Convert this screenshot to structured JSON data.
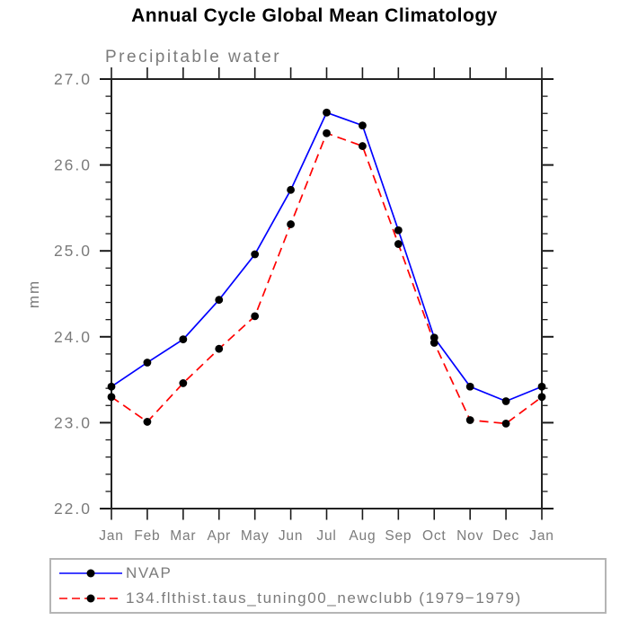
{
  "header": {
    "title": "Annual Cycle Global Mean Climatology",
    "subtitle": "Precipitable water"
  },
  "chart_data": {
    "type": "line",
    "title": "Annual Cycle Global Mean Climatology",
    "subtitle": "Precipitable water",
    "xlabel": "",
    "ylabel": "mm",
    "categories": [
      "Jan",
      "Feb",
      "Mar",
      "Apr",
      "May",
      "Jun",
      "Jul",
      "Aug",
      "Sep",
      "Oct",
      "Nov",
      "Dec",
      "Jan"
    ],
    "ylim": [
      22.0,
      27.0
    ],
    "ytick_labels": [
      "22.0",
      "23.0",
      "24.0",
      "25.0",
      "26.0",
      "27.0"
    ],
    "ytick_major_step": 1.0,
    "ytick_minor_step": 0.2,
    "grid": false,
    "tick_direction": "out",
    "legend_position": "bottom-left",
    "series": [
      {
        "name": "NVAP",
        "color": "#0000ff",
        "line_style": "solid",
        "marker": "circle",
        "marker_color": "#000000",
        "values": [
          23.42,
          23.7,
          23.97,
          24.43,
          24.96,
          25.71,
          26.61,
          26.46,
          25.24,
          23.99,
          23.42,
          23.25,
          23.42
        ]
      },
      {
        "name": "134.flthist.taus_tuning00_newclubb (1979−1979)",
        "color": "#ff0000",
        "line_style": "dashed",
        "marker": "circle",
        "marker_color": "#000000",
        "values": [
          23.3,
          23.01,
          23.46,
          23.86,
          24.24,
          25.31,
          26.37,
          26.22,
          25.08,
          23.93,
          23.03,
          22.99,
          23.3
        ]
      }
    ]
  },
  "colors": {
    "text_gray": "#7b7b7b",
    "frame": "#222222",
    "tick": "#1a1a1a",
    "legend_border": "#b5b5b5",
    "background": "#ffffff"
  }
}
